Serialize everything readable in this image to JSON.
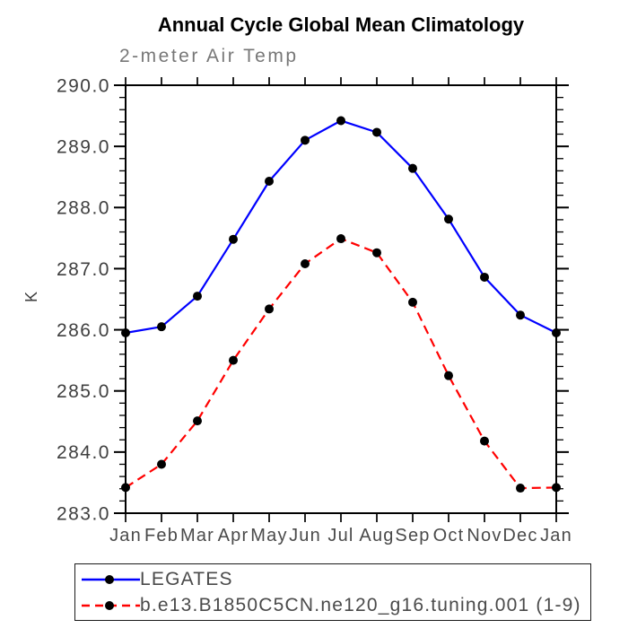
{
  "chart_data": {
    "type": "line",
    "title": "Annual Cycle Global Mean Climatology",
    "subtitle": "2-meter Air Temp",
    "ylabel": "K",
    "ylim": [
      283.0,
      290.0
    ],
    "ytick_major_step": 1.0,
    "ytick_minor_step": 0.2,
    "ytick_decimals": 1,
    "grid": false,
    "categories": [
      "Jan",
      "Feb",
      "Mar",
      "Apr",
      "May",
      "Jun",
      "Jul",
      "Aug",
      "Sep",
      "Oct",
      "Nov",
      "Dec",
      "Jan"
    ],
    "legend_position": "bottom-left",
    "axis_color": "#000000",
    "tick_label_color": "#3f3f3f",
    "subtitle_color": "#777777",
    "series": [
      {
        "name": "LEGATES",
        "color": "#0000ff",
        "line_style": "solid",
        "marker": "filled-circle",
        "marker_color": "#000000",
        "values": [
          285.95,
          286.05,
          286.55,
          287.48,
          288.43,
          289.1,
          289.42,
          289.23,
          288.64,
          287.81,
          286.86,
          286.24,
          285.95
        ]
      },
      {
        "name": "b.e13.B1850C5CN.ne120_g16.tuning.001 (1-9)",
        "color": "#ff0000",
        "line_style": "dashed",
        "marker": "filled-circle",
        "marker_color": "#000000",
        "values": [
          283.42,
          283.8,
          284.51,
          285.5,
          286.34,
          287.08,
          287.49,
          287.26,
          286.45,
          285.25,
          284.18,
          283.41,
          283.42
        ]
      }
    ]
  }
}
